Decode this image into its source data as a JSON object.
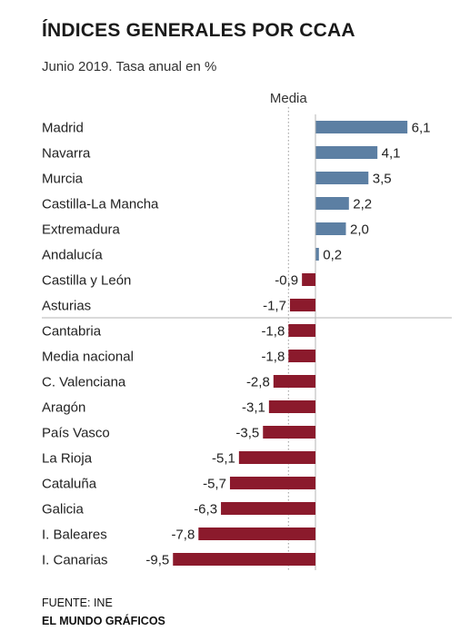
{
  "title": "ÍNDICES GENERALES POR CCAA",
  "subtitle": "Junio 2019. Tasa anual en %",
  "media_label": "Media",
  "source": "FUENTE: INE",
  "credit": "EL MUNDO GRÁFICOS",
  "colors": {
    "positive": "#5c7fa3",
    "negative": "#8b1a2c"
  },
  "chart_data": {
    "type": "bar",
    "orientation": "horizontal",
    "title": "ÍNDICES GENERALES POR CCAA",
    "subtitle": "Junio 2019. Tasa anual en %",
    "reference_line": {
      "label": "Media",
      "value": -1.8
    },
    "categories": [
      "Madrid",
      "Navarra",
      "Murcia",
      "Castilla-La Mancha",
      "Extremadura",
      "Andalucía",
      "Castilla y León",
      "Asturias",
      "Cantabria",
      "Media nacional",
      "C. Valenciana",
      "Aragón",
      "País Vasco",
      "La Rioja",
      "Cataluña",
      "Galicia",
      "I. Baleares",
      "I. Canarias"
    ],
    "values": [
      6.1,
      4.1,
      3.5,
      2.2,
      2.0,
      0.2,
      -0.9,
      -1.7,
      -1.8,
      -1.8,
      -2.8,
      -3.1,
      -3.5,
      -5.1,
      -5.7,
      -6.3,
      -7.8,
      -9.5
    ],
    "value_labels": [
      "6,1",
      "4,1",
      "3,5",
      "2,2",
      "2,0",
      "0,2",
      "-0,9",
      "-1,7",
      "-1,8",
      "-1,8",
      "-2,8",
      "-3,1",
      "-3,5",
      "-5,1",
      "-5,7",
      "-6,3",
      "-7,8",
      "-9,5"
    ]
  }
}
